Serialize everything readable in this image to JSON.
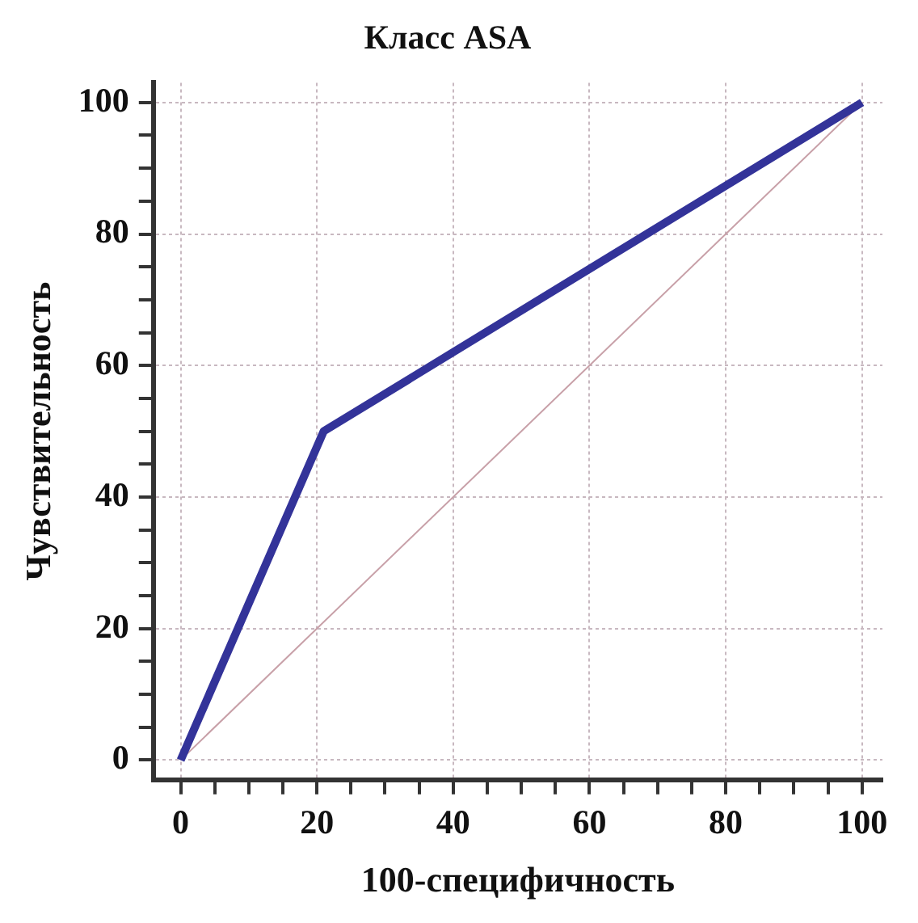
{
  "chart_data": {
    "type": "line",
    "title": "Класс ASA",
    "xlabel": "100-специфичность",
    "ylabel": "Чувствительность",
    "series": [
      {
        "x": [
          0,
          21,
          100
        ],
        "values": [
          0,
          50,
          100
        ],
        "color": "#333399"
      },
      {
        "x": [
          0,
          100
        ],
        "values": [
          0,
          100
        ],
        "color": "#c8a0a8"
      }
    ],
    "xlim": [
      -4,
      103
    ],
    "ylim": [
      -3,
      103
    ],
    "xticks": [
      0,
      {
        "value": 5,
        "label": null
      },
      {
        "value": 10,
        "label": null
      },
      {
        "value": 15,
        "label": null
      },
      20,
      {
        "value": 25,
        "label": null
      },
      {
        "value": 30,
        "label": null
      },
      {
        "value": 35,
        "label": null
      },
      40,
      {
        "value": 45,
        "label": null
      },
      {
        "value": 50,
        "label": null
      },
      {
        "value": 55,
        "label": null
      },
      60,
      {
        "value": 65,
        "label": null
      },
      {
        "value": 70,
        "label": null
      },
      {
        "value": 75,
        "label": null
      },
      80,
      {
        "value": 85,
        "label": null
      },
      {
        "value": 90,
        "label": null
      },
      {
        "value": 95,
        "label": null
      },
      100
    ],
    "yticks": [
      0,
      {
        "value": 5,
        "label": null
      },
      {
        "value": 10,
        "label": null
      },
      {
        "value": 15,
        "label": null
      },
      20,
      {
        "value": 25,
        "label": null
      },
      {
        "value": 30,
        "label": null
      },
      {
        "value": 35,
        "label": null
      },
      40,
      {
        "value": 45,
        "label": null
      },
      {
        "value": 50,
        "label": null
      },
      {
        "value": 55,
        "label": null
      },
      60,
      {
        "value": 65,
        "label": null
      },
      {
        "value": 70,
        "label": null
      },
      {
        "value": 75,
        "label": null
      },
      80,
      {
        "value": 85,
        "label": null
      },
      {
        "value": 90,
        "label": null
      },
      {
        "value": 95,
        "label": null
      },
      100
    ],
    "grid": true,
    "legend": false,
    "marker": "none",
    "line_style": "solid"
  }
}
